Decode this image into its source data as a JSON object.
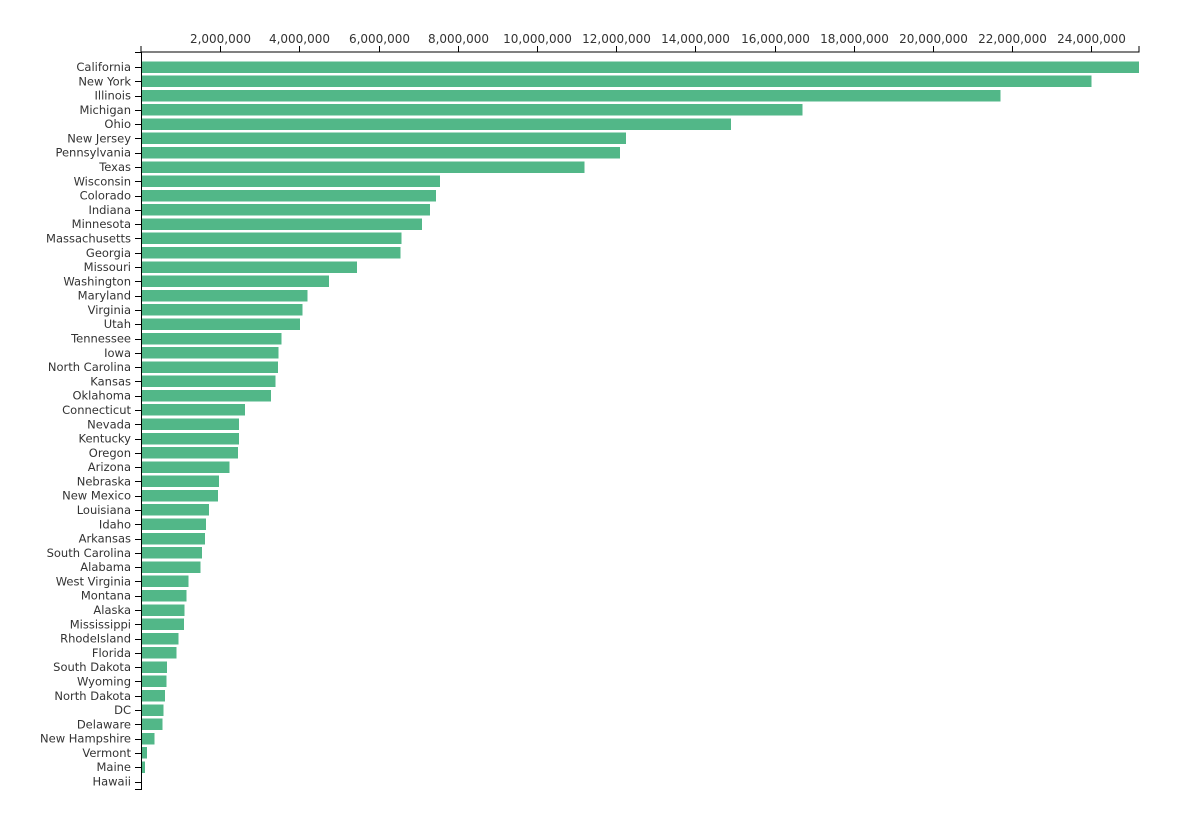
{
  "chart_data": {
    "type": "bar",
    "orientation": "horizontal",
    "title": "",
    "xlabel": "",
    "ylabel": "",
    "xlim": [
      0,
      25200000
    ],
    "x_ticks": [
      2000000,
      4000000,
      6000000,
      8000000,
      10000000,
      12000000,
      14000000,
      16000000,
      18000000,
      20000000,
      22000000,
      24000000
    ],
    "x_tick_labels": [
      "2,000,000",
      "4,000,000",
      "6,000,000",
      "8,000,000",
      "10,000,000",
      "12,000,000",
      "14,000,000",
      "16,000,000",
      "18,000,000",
      "20,000,000",
      "22,000,000",
      "24,000,000"
    ],
    "x_axis_position": "top",
    "grid": false,
    "legend": "none",
    "bar_color": "#52b788",
    "categories": [
      "California",
      "New York",
      "Illinois",
      "Michigan",
      "Ohio",
      "New Jersey",
      "Pennsylvania",
      "Texas",
      "Wisconsin",
      "Colorado",
      "Indiana",
      "Minnesota",
      "Massachusetts",
      "Georgia",
      "Missouri",
      "Washington",
      "Maryland",
      "Virginia",
      "Utah",
      "Tennessee",
      "Iowa",
      "North Carolina",
      "Kansas",
      "Oklahoma",
      "Connecticut",
      "Nevada",
      "Kentucky",
      "Oregon",
      "Arizona",
      "Nebraska",
      "New Mexico",
      "Louisiana",
      "Idaho",
      "Arkansas",
      "South Carolina",
      "Alabama",
      "West Virginia",
      "Montana",
      "Alaska",
      "Mississippi",
      "RhodeIsland",
      "Florida",
      "South Dakota",
      "Wyoming",
      "North Dakota",
      "DC",
      "Delaware",
      "New Hampshire",
      "Vermont",
      "Maine",
      "Hawaii"
    ],
    "values": [
      25200000,
      24000000,
      21700000,
      16700000,
      14900000,
      12250000,
      12100000,
      11200000,
      7550000,
      7450000,
      7300000,
      7100000,
      6580000,
      6550000,
      5450000,
      4750000,
      4200000,
      4080000,
      4020000,
      3550000,
      3470000,
      3460000,
      3390000,
      3280000,
      2620000,
      2480000,
      2470000,
      2450000,
      2230000,
      1970000,
      1950000,
      1720000,
      1640000,
      1620000,
      1540000,
      1500000,
      1200000,
      1150000,
      1100000,
      1080000,
      950000,
      900000,
      660000,
      650000,
      600000,
      570000,
      540000,
      340000,
      150000,
      100000,
      0
    ]
  }
}
